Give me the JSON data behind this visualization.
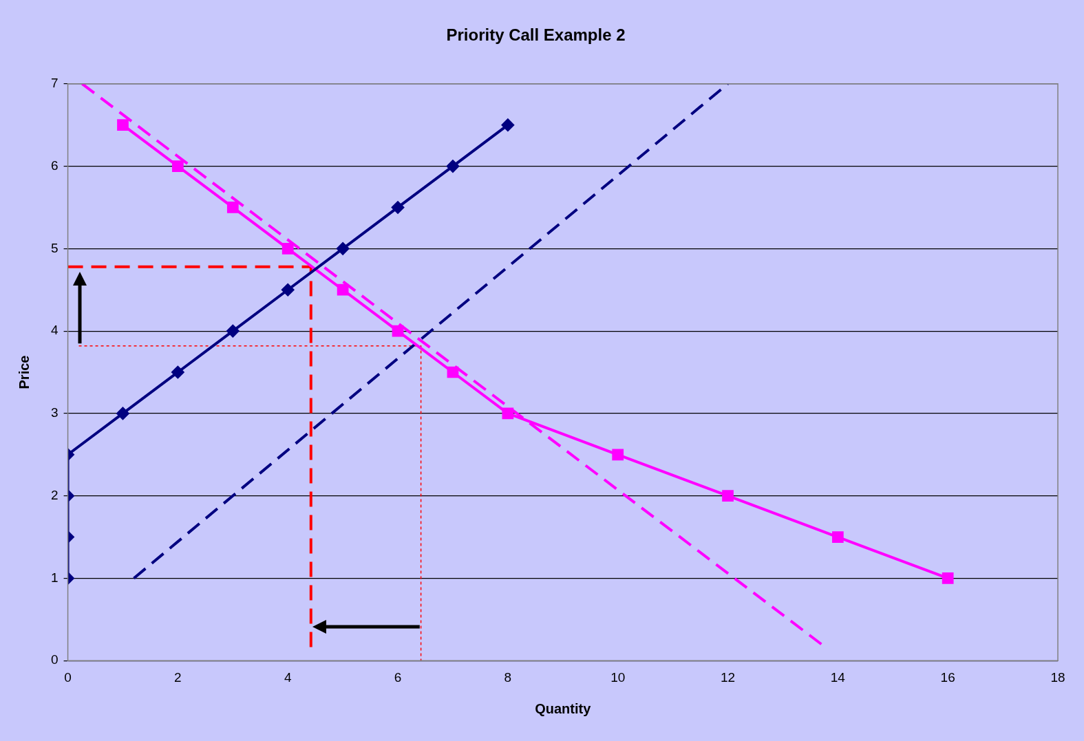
{
  "chart_data": {
    "type": "line",
    "title": "Priority Call Example 2",
    "xlabel": "Quantity",
    "ylabel": "Price",
    "xlim": [
      0,
      18
    ],
    "ylim": [
      0,
      7
    ],
    "xticks": [
      0,
      2,
      4,
      6,
      8,
      10,
      12,
      14,
      16,
      18
    ],
    "yticks": [
      0,
      1,
      2,
      3,
      4,
      5,
      6,
      7
    ],
    "grid": "y",
    "legend": false,
    "series": [
      {
        "type": "line",
        "color": "#000080",
        "marker": "diamond",
        "line_style": "solid",
        "x": [
          0,
          0,
          0,
          0,
          1,
          2,
          3,
          4,
          5,
          6,
          7,
          8
        ],
        "values": [
          1,
          1.5,
          2,
          2.5,
          3,
          3.5,
          4,
          4.5,
          5,
          5.5,
          6,
          6.5
        ]
      },
      {
        "type": "line",
        "color": "#ff00ff",
        "marker": "square",
        "line_style": "solid",
        "x": [
          1,
          2,
          3,
          4,
          5,
          6,
          7,
          8,
          10,
          12,
          14,
          16
        ],
        "values": [
          6.5,
          6,
          5.5,
          5,
          4.5,
          4,
          3.5,
          3,
          2.5,
          2,
          1.5,
          1
        ]
      },
      {
        "type": "line",
        "color": "#ff00ff",
        "marker": "none",
        "line_style": "dashed",
        "x": [
          0.26,
          13.7
        ],
        "values": [
          7,
          0.2
        ]
      },
      {
        "type": "line",
        "color": "#000080",
        "marker": "none",
        "line_style": "dashed",
        "x": [
          1.2,
          12
        ],
        "values": [
          1,
          7
        ]
      },
      {
        "type": "line",
        "color": "#ff0000",
        "marker": "none",
        "line_style": "dashed",
        "x": [
          0,
          4.42,
          4.42
        ],
        "values": [
          4.78,
          4.78,
          0.15
        ]
      },
      {
        "type": "line",
        "color": "#ff0000",
        "marker": "none",
        "line_style": "dotted",
        "x": [
          0.2,
          6.42,
          6.42
        ],
        "values": [
          3.82,
          3.82,
          0
        ]
      }
    ]
  }
}
